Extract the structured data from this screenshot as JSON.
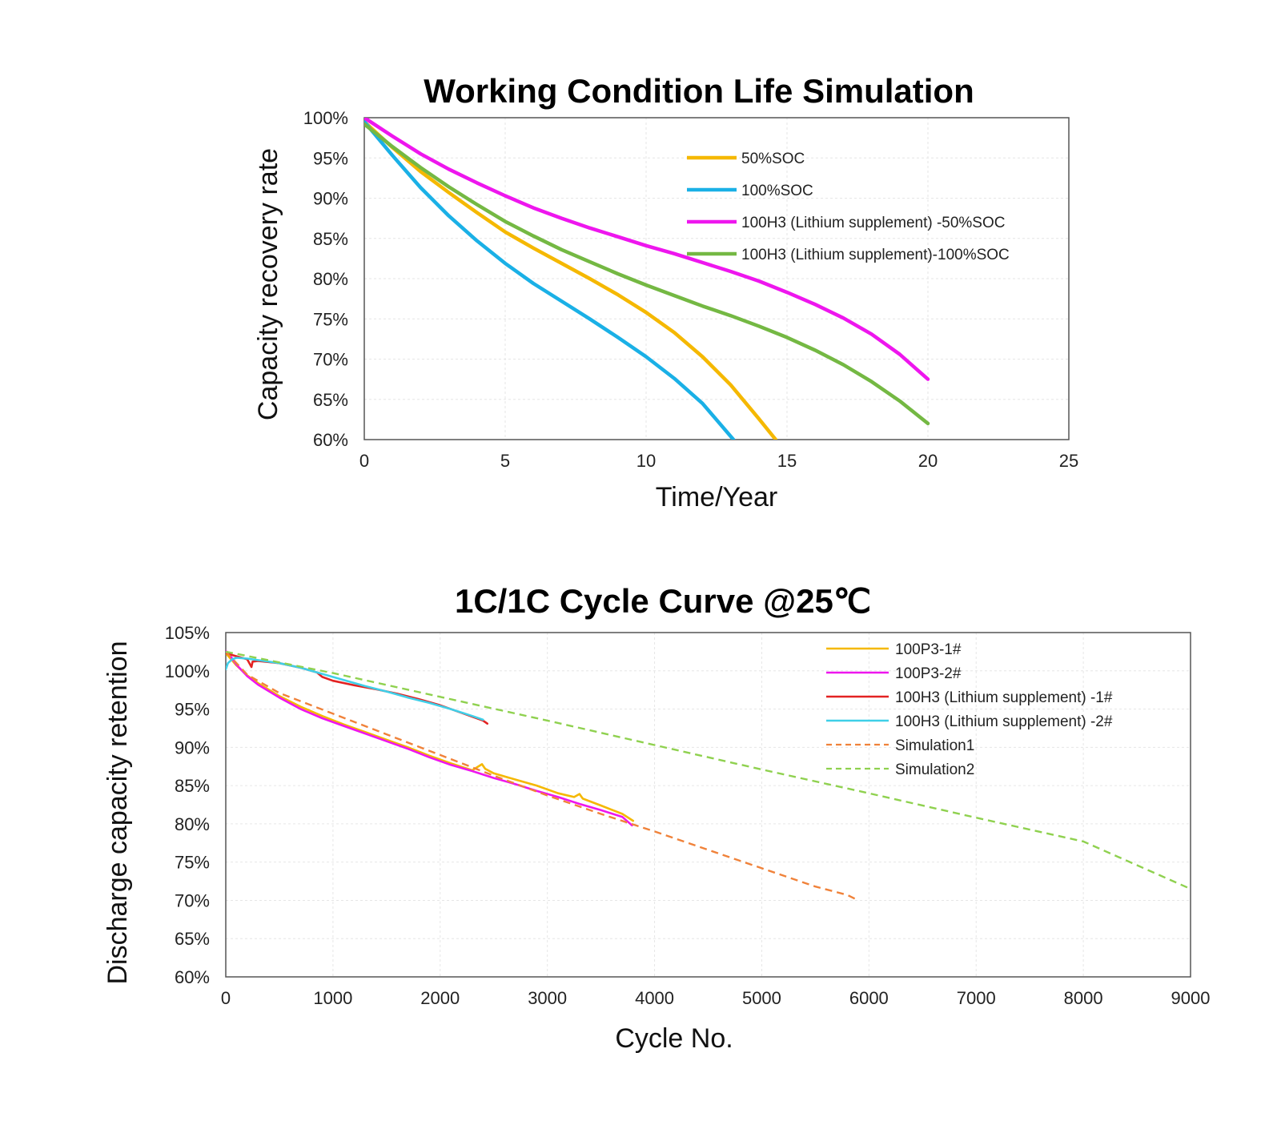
{
  "chart_data": [
    {
      "type": "line",
      "title": "Working Condition Life Simulation",
      "xlabel": "Time/Year",
      "ylabel": "Capacity recovery rate",
      "xlim": [
        0,
        25
      ],
      "ylim": [
        60,
        100
      ],
      "xticks": [
        0,
        5,
        10,
        15,
        20,
        25
      ],
      "xtick_labels": [
        "0",
        "5",
        "10",
        "15",
        "20",
        "25"
      ],
      "yticks": [
        60,
        65,
        70,
        75,
        80,
        85,
        90,
        95,
        100
      ],
      "ytick_labels": [
        "60%",
        "65%",
        "70%",
        "75%",
        "80%",
        "85%",
        "90%",
        "95%",
        "100%"
      ],
      "grid": true,
      "legend_position": "top-right",
      "series": [
        {
          "name": "50%SOC",
          "color": "#f5b800",
          "style": "solid",
          "x": [
            0,
            1,
            2,
            3,
            4,
            5,
            6,
            7,
            8,
            9,
            10,
            11,
            12,
            13,
            14,
            14.6
          ],
          "y": [
            99.5,
            96.3,
            93.3,
            90.7,
            88.2,
            85.8,
            83.8,
            81.9,
            80.0,
            78.0,
            75.8,
            73.3,
            70.3,
            66.8,
            62.6,
            60
          ]
        },
        {
          "name": "100%SOC",
          "color": "#1ab0e6",
          "style": "solid",
          "x": [
            0,
            1,
            2,
            3,
            4,
            5,
            6,
            7,
            8,
            9,
            10,
            11,
            12,
            13.1
          ],
          "y": [
            99.5,
            95.3,
            91.3,
            87.8,
            84.7,
            81.9,
            79.4,
            77.2,
            75.0,
            72.7,
            70.3,
            67.6,
            64.5,
            60
          ]
        },
        {
          "name": "100H3 (Lithium supplement) -50%SOC",
          "color": "#ee16ee",
          "style": "solid",
          "x": [
            0,
            1,
            2,
            3,
            4,
            5,
            6,
            7,
            8,
            9,
            10,
            11,
            12,
            13,
            14,
            15,
            16,
            17,
            18,
            19,
            20
          ],
          "y": [
            100,
            97.7,
            95.5,
            93.6,
            91.9,
            90.3,
            88.8,
            87.5,
            86.3,
            85.2,
            84.1,
            83.1,
            82.0,
            80.9,
            79.7,
            78.3,
            76.8,
            75.1,
            73.1,
            70.6,
            67.5
          ]
        },
        {
          "name": "100H3 (Lithium supplement)-100%SOC",
          "color": "#74b843",
          "style": "solid",
          "x": [
            0,
            1,
            2,
            3,
            4,
            5,
            6,
            7,
            8,
            9,
            10,
            11,
            12,
            13,
            14,
            15,
            16,
            17,
            18,
            19,
            20
          ],
          "y": [
            99.2,
            96.4,
            93.8,
            91.4,
            89.2,
            87.1,
            85.3,
            83.6,
            82.1,
            80.6,
            79.2,
            77.9,
            76.6,
            75.4,
            74.1,
            72.7,
            71.1,
            69.3,
            67.2,
            64.8,
            62.0
          ]
        }
      ]
    },
    {
      "type": "line",
      "title": "1C/1C Cycle Curve @25℃",
      "xlabel": "Cycle No.",
      "ylabel": "Discharge capacity retention",
      "xlim": [
        0,
        9000
      ],
      "ylim": [
        60,
        105
      ],
      "xticks": [
        0,
        1000,
        2000,
        3000,
        4000,
        5000,
        6000,
        7000,
        8000,
        9000
      ],
      "xtick_labels": [
        "0",
        "1000",
        "2000",
        "3000",
        "4000",
        "5000",
        "6000",
        "7000",
        "8000",
        "9000"
      ],
      "yticks": [
        60,
        65,
        70,
        75,
        80,
        85,
        90,
        95,
        100,
        105
      ],
      "ytick_labels": [
        "60%",
        "65%",
        "70%",
        "75%",
        "80%",
        "85%",
        "90%",
        "95%",
        "100%",
        "105%"
      ],
      "grid": true,
      "legend_position": "top-right",
      "series": [
        {
          "name": "100P3-1#",
          "color": "#f5b800",
          "style": "solid",
          "x": [
            0,
            50,
            100,
            200,
            300,
            500,
            700,
            900,
            1100,
            1300,
            1500,
            1700,
            1900,
            2100,
            2300,
            2390,
            2420,
            2500,
            2700,
            2900,
            3100,
            3250,
            3300,
            3330,
            3500,
            3700,
            3800
          ],
          "y": [
            102.3,
            101.5,
            100.7,
            99.4,
            98.4,
            96.7,
            95.3,
            94.1,
            93.0,
            92.0,
            91.0,
            90.0,
            88.9,
            87.9,
            87.0,
            87.8,
            87.2,
            86.6,
            85.8,
            85.0,
            84.0,
            83.5,
            83.9,
            83.3,
            82.4,
            81.3,
            80.4
          ]
        },
        {
          "name": "100P3-2#",
          "color": "#ee16ee",
          "style": "solid",
          "x": [
            0,
            50,
            100,
            200,
            300,
            500,
            700,
            900,
            1100,
            1300,
            1500,
            1700,
            1900,
            2100,
            2300,
            2500,
            2700,
            2900,
            3100,
            3300,
            3500,
            3700,
            3790
          ],
          "y": [
            102.6,
            101.8,
            100.8,
            99.3,
            98.2,
            96.5,
            95.0,
            93.8,
            92.8,
            91.8,
            90.8,
            89.8,
            88.7,
            87.7,
            86.9,
            86.0,
            85.2,
            84.3,
            83.5,
            82.6,
            81.8,
            80.9,
            79.8
          ]
        },
        {
          "name": "100H3 (Lithium supplement) -1#",
          "color": "#e32222",
          "style": "solid",
          "x": [
            0,
            100,
            200,
            240,
            250,
            300,
            500,
            700,
            850,
            900,
            1000,
            1200,
            1400,
            1600,
            1800,
            2000,
            2200,
            2400,
            2440
          ],
          "y": [
            102.3,
            101.9,
            101.5,
            100.5,
            101.2,
            101.3,
            101.0,
            100.4,
            99.8,
            99.2,
            98.7,
            98.1,
            97.6,
            97.0,
            96.3,
            95.5,
            94.5,
            93.5,
            93.1
          ]
        },
        {
          "name": "100H3 (Lithium supplement) -2#",
          "color": "#3fcfe8",
          "style": "solid",
          "x": [
            0,
            20,
            60,
            100,
            200,
            300,
            500,
            700,
            900,
            1100,
            1300,
            1500,
            1700,
            1900,
            2100,
            2300,
            2400
          ],
          "y": [
            100.2,
            101.0,
            101.5,
            101.7,
            101.6,
            101.4,
            101.0,
            100.4,
            99.6,
            98.8,
            98.0,
            97.3,
            96.5,
            95.8,
            95.0,
            94.1,
            93.6
          ]
        },
        {
          "name": "Simulation1",
          "color": "#f0823a",
          "style": "dashed",
          "x": [
            0,
            200,
            500,
            1000,
            1500,
            2000,
            2500,
            3000,
            3500,
            4000,
            4500,
            5000,
            5500,
            5800,
            5900
          ],
          "y": [
            102.5,
            99.5,
            97.1,
            94.4,
            91.7,
            89.0,
            86.3,
            83.7,
            81.3,
            79.0,
            76.6,
            74.2,
            71.8,
            70.7,
            70.0
          ]
        },
        {
          "name": "Simulation2",
          "color": "#8fd14f",
          "style": "dashed",
          "x": [
            0,
            1000,
            2000,
            3000,
            4000,
            5000,
            6000,
            7000,
            8000,
            9000
          ],
          "y": [
            102.5,
            99.7,
            96.6,
            93.5,
            90.3,
            87.1,
            84.0,
            80.8,
            77.7,
            71.5
          ]
        }
      ]
    }
  ]
}
